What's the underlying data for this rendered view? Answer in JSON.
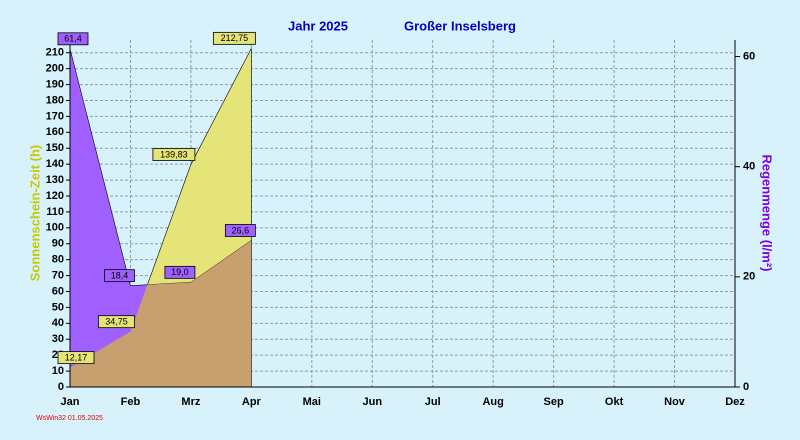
{
  "chart_data": {
    "type": "area",
    "title": "Jahr  2025",
    "subtitle": "Großer Inselsberg",
    "categories": [
      "Jan",
      "Feb",
      "Mrz",
      "Apr",
      "Mai",
      "Jun",
      "Jul",
      "Aug",
      "Sep",
      "Okt",
      "Nov",
      "Dez"
    ],
    "y_label": "Sonnenschein-Zeit  (h)",
    "y2_label": "Regenmenge  (l/m²)",
    "ylim": [
      0,
      218
    ],
    "yticks": [
      0,
      10,
      20,
      30,
      40,
      50,
      60,
      70,
      80,
      90,
      100,
      110,
      120,
      130,
      140,
      150,
      160,
      170,
      180,
      190,
      200,
      210
    ],
    "y2lim": [
      0,
      63
    ],
    "y2ticks": [
      0,
      20,
      40,
      60
    ],
    "grid": true,
    "series": [
      {
        "color": "#e4e478",
        "values": [
          12.17,
          34.75,
          139.83,
          212.75,
          null,
          null,
          null,
          null,
          null,
          null,
          null,
          null
        ],
        "value_labels": [
          "12,17",
          "34,75",
          "139,83",
          "212,75",
          null,
          null,
          null,
          null,
          null,
          null,
          null,
          null
        ]
      },
      {
        "color": "#a060ff",
        "axis": "y2",
        "values": [
          61.4,
          18.4,
          19.0,
          26.6,
          null,
          null,
          null,
          null,
          null,
          null,
          null,
          null
        ],
        "value_labels": [
          "61,4",
          "18,4",
          "19,0",
          "26,6",
          null,
          null,
          null,
          null,
          null,
          null,
          null,
          null
        ]
      }
    ],
    "footer": "WsWin32  01.05.2025"
  }
}
